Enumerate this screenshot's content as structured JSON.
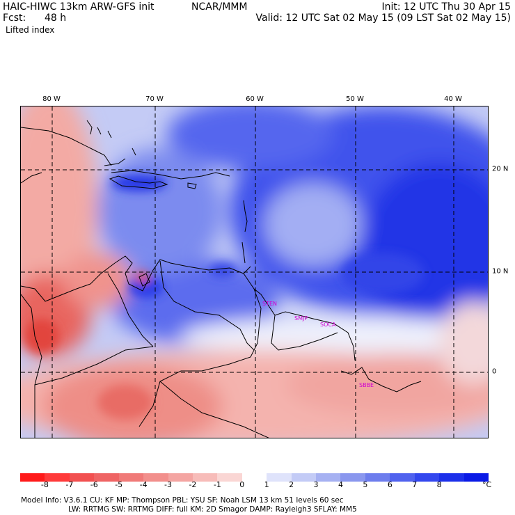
{
  "header": {
    "model_title": "HAIC-HIWC 13km ARW-GFS init",
    "org": "NCAR/MMM",
    "init": "Init: 12 UTC Thu 30 Apr 15",
    "fcst_label": "Fcst:",
    "fcst_value": "48 h",
    "valid": "Valid: 12 UTC Sat 02 May 15 (09 LST Sat 02 May 15)",
    "field_name": "Lifted index"
  },
  "map": {
    "lon_labels": [
      "80 W",
      "70 W",
      "60 W",
      "50 W",
      "40 W"
    ],
    "lat_labels": [
      "20 N",
      "10 N",
      "0"
    ],
    "stations": [
      "STEN",
      "SMJP",
      "SOCA",
      "SBBE"
    ],
    "colors": {
      "strong_blue": "#1a2fe0",
      "mid_blue": "#5a6ef0",
      "light_blue": "#b9c2f7",
      "white": "#ffffff",
      "light_red": "#f7c7c2",
      "mid_red": "#ef8a82",
      "strong_red": "#e34a42",
      "station_text": "#d000d0"
    }
  },
  "colorbar": {
    "ticks": [
      "-8",
      "-7",
      "-6",
      "-5",
      "-4",
      "-3",
      "-2",
      "-1",
      "0",
      "1",
      "2",
      "3",
      "4",
      "5",
      "6",
      "7",
      "8"
    ],
    "unit": "°C",
    "colors": [
      "#ff1a1a",
      "#ff3a3a",
      "#f25050",
      "#ef6464",
      "#f07a78",
      "#f28f8c",
      "#f4a5a2",
      "#f7bcb9",
      "#fad6d4",
      "#ffffff",
      "#dfe3fb",
      "#c3cbf6",
      "#a6b1f2",
      "#8a97ee",
      "#6d7ded",
      "#5062ee",
      "#3347ee",
      "#1c30ea",
      "#0a1ae6"
    ]
  },
  "footer": {
    "line1": "Model Info: V3.6.1     CU: KF      MP: Thompson      PBL: YSU        SF: Noah LSM      13 km    51 levels   60 sec",
    "line2": "LW: RRTMG     SW: RRTMG   DIFF: full   KM: 2D Smagor DAMP: Rayleigh3   SFLAY: MM5"
  }
}
